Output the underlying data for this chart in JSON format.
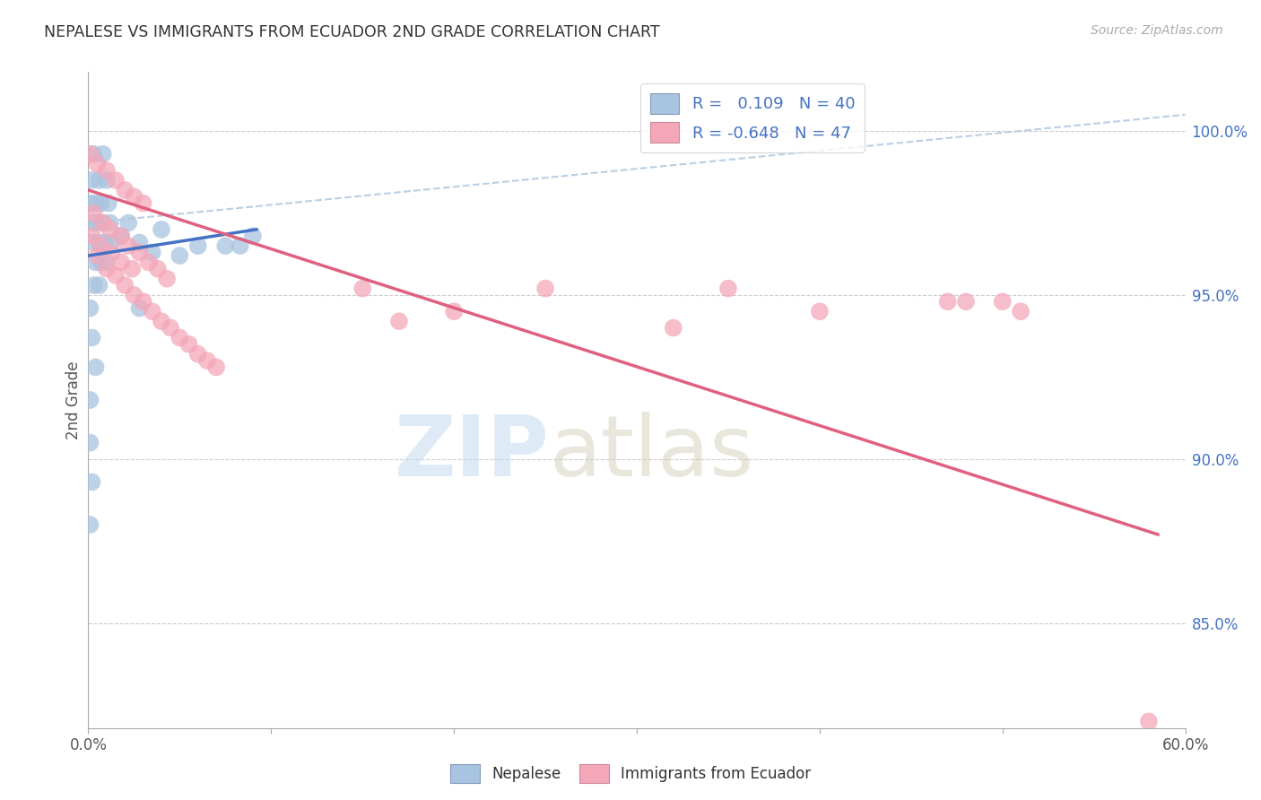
{
  "title": "NEPALESE VS IMMIGRANTS FROM ECUADOR 2ND GRADE CORRELATION CHART",
  "source": "Source: ZipAtlas.com",
  "ylabel": "2nd Grade",
  "yaxis_labels": [
    "100.0%",
    "95.0%",
    "90.0%",
    "85.0%"
  ],
  "yaxis_values": [
    1.0,
    0.95,
    0.9,
    0.85
  ],
  "xlim": [
    0.0,
    0.6
  ],
  "ylim": [
    0.818,
    1.018
  ],
  "legend_label1": "R =   0.109   N = 40",
  "legend_label2": "R = -0.648   N = 47",
  "watermark_zip": "ZIP",
  "watermark_atlas": "atlas",
  "nepalese_color": "#a8c4e0",
  "ecuador_color": "#f4a7b9",
  "nepalese_line_color": "#4472c4",
  "ecuador_line_color": "#e06080",
  "nepalese_scatter": [
    [
      0.003,
      0.993
    ],
    [
      0.008,
      0.993
    ],
    [
      0.002,
      0.985
    ],
    [
      0.006,
      0.985
    ],
    [
      0.01,
      0.985
    ],
    [
      0.001,
      0.978
    ],
    [
      0.004,
      0.978
    ],
    [
      0.007,
      0.978
    ],
    [
      0.011,
      0.978
    ],
    [
      0.002,
      0.972
    ],
    [
      0.005,
      0.972
    ],
    [
      0.008,
      0.972
    ],
    [
      0.012,
      0.972
    ],
    [
      0.003,
      0.966
    ],
    [
      0.006,
      0.966
    ],
    [
      0.009,
      0.966
    ],
    [
      0.013,
      0.966
    ],
    [
      0.004,
      0.96
    ],
    [
      0.007,
      0.96
    ],
    [
      0.01,
      0.96
    ],
    [
      0.003,
      0.953
    ],
    [
      0.006,
      0.953
    ],
    [
      0.001,
      0.946
    ],
    [
      0.002,
      0.937
    ],
    [
      0.004,
      0.928
    ],
    [
      0.001,
      0.918
    ],
    [
      0.018,
      0.968
    ],
    [
      0.001,
      0.905
    ],
    [
      0.002,
      0.893
    ],
    [
      0.001,
      0.88
    ],
    [
      0.022,
      0.972
    ],
    [
      0.04,
      0.97
    ],
    [
      0.028,
      0.966
    ],
    [
      0.035,
      0.963
    ],
    [
      0.05,
      0.962
    ],
    [
      0.06,
      0.965
    ],
    [
      0.075,
      0.965
    ],
    [
      0.083,
      0.965
    ],
    [
      0.09,
      0.968
    ],
    [
      0.028,
      0.946
    ]
  ],
  "ecuador_scatter": [
    [
      0.001,
      0.993
    ],
    [
      0.005,
      0.99
    ],
    [
      0.01,
      0.988
    ],
    [
      0.015,
      0.985
    ],
    [
      0.02,
      0.982
    ],
    [
      0.025,
      0.98
    ],
    [
      0.03,
      0.978
    ],
    [
      0.003,
      0.975
    ],
    [
      0.008,
      0.972
    ],
    [
      0.012,
      0.97
    ],
    [
      0.018,
      0.968
    ],
    [
      0.022,
      0.965
    ],
    [
      0.028,
      0.963
    ],
    [
      0.033,
      0.96
    ],
    [
      0.038,
      0.958
    ],
    [
      0.043,
      0.955
    ],
    [
      0.005,
      0.962
    ],
    [
      0.01,
      0.958
    ],
    [
      0.015,
      0.956
    ],
    [
      0.02,
      0.953
    ],
    [
      0.025,
      0.95
    ],
    [
      0.03,
      0.948
    ],
    [
      0.035,
      0.945
    ],
    [
      0.04,
      0.942
    ],
    [
      0.045,
      0.94
    ],
    [
      0.05,
      0.937
    ],
    [
      0.055,
      0.935
    ],
    [
      0.06,
      0.932
    ],
    [
      0.065,
      0.93
    ],
    [
      0.07,
      0.928
    ],
    [
      0.002,
      0.968
    ],
    [
      0.007,
      0.965
    ],
    [
      0.013,
      0.963
    ],
    [
      0.018,
      0.96
    ],
    [
      0.024,
      0.958
    ],
    [
      0.15,
      0.952
    ],
    [
      0.2,
      0.945
    ],
    [
      0.25,
      0.952
    ],
    [
      0.35,
      0.952
    ],
    [
      0.47,
      0.948
    ],
    [
      0.48,
      0.948
    ],
    [
      0.5,
      0.948
    ],
    [
      0.51,
      0.945
    ],
    [
      0.4,
      0.945
    ],
    [
      0.32,
      0.94
    ],
    [
      0.17,
      0.942
    ],
    [
      0.58,
      0.82
    ]
  ],
  "nepalese_line": {
    "x0": 0.0,
    "y0": 0.962,
    "x1": 0.092,
    "y1": 0.97
  },
  "ecuador_line": {
    "x0": 0.0,
    "y0": 0.982,
    "x1": 0.585,
    "y1": 0.877
  },
  "dashed_line": {
    "x0": 0.0,
    "y0": 0.972,
    "x1": 0.6,
    "y1": 1.005
  }
}
